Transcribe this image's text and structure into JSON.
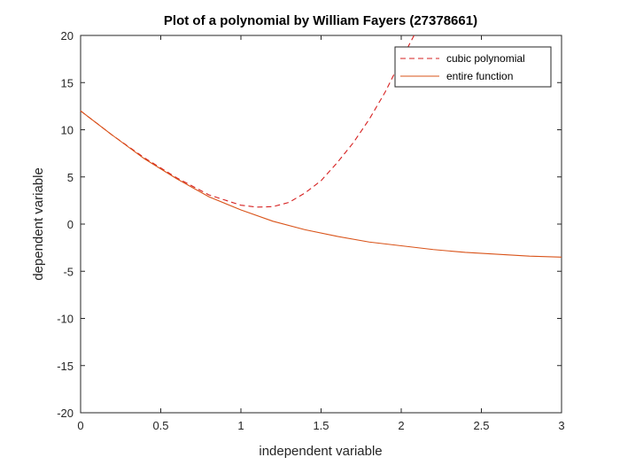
{
  "chart_data": {
    "type": "line",
    "title": "Plot of a polynomial by William Fayers (27378661)",
    "xlabel": "independent variable",
    "ylabel": "dependent variable",
    "xlim": [
      0,
      3
    ],
    "ylim": [
      -20,
      20
    ],
    "xticks": [
      0,
      0.5,
      1,
      1.5,
      2,
      2.5,
      3
    ],
    "xtick_labels": [
      "0",
      "0.5",
      "1",
      "1.5",
      "2",
      "2.5",
      "3"
    ],
    "yticks": [
      -20,
      -15,
      -10,
      -5,
      0,
      5,
      10,
      15,
      20
    ],
    "ytick_labels": [
      "-20",
      "-15",
      "-10",
      "-5",
      "0",
      "5",
      "10",
      "15",
      "20"
    ],
    "grid": false,
    "legend_position": "top-right",
    "series": [
      {
        "name": "cubic polynomial",
        "style": "dashed",
        "color": "#d62020",
        "x": [
          0,
          0.2,
          0.4,
          0.6,
          0.8,
          1.0,
          1.1,
          1.2,
          1.3,
          1.4,
          1.5,
          1.6,
          1.7,
          1.8,
          1.9,
          2.0,
          2.08
        ],
        "y": [
          12,
          9.4,
          7.0,
          4.9,
          3.1,
          2.0,
          1.8,
          1.85,
          2.3,
          3.3,
          4.6,
          6.5,
          8.6,
          11.1,
          14.0,
          17.4,
          20
        ]
      },
      {
        "name": "entire function",
        "style": "solid",
        "color": "#d95319",
        "x": [
          0,
          0.2,
          0.4,
          0.6,
          0.8,
          1.0,
          1.2,
          1.4,
          1.6,
          1.8,
          2.0,
          2.2,
          2.4,
          2.6,
          2.8,
          3.0
        ],
        "y": [
          12,
          9.4,
          6.9,
          4.8,
          2.9,
          1.5,
          0.3,
          -0.6,
          -1.3,
          -1.9,
          -2.3,
          -2.7,
          -3.0,
          -3.2,
          -3.4,
          -3.5
        ]
      }
    ]
  }
}
